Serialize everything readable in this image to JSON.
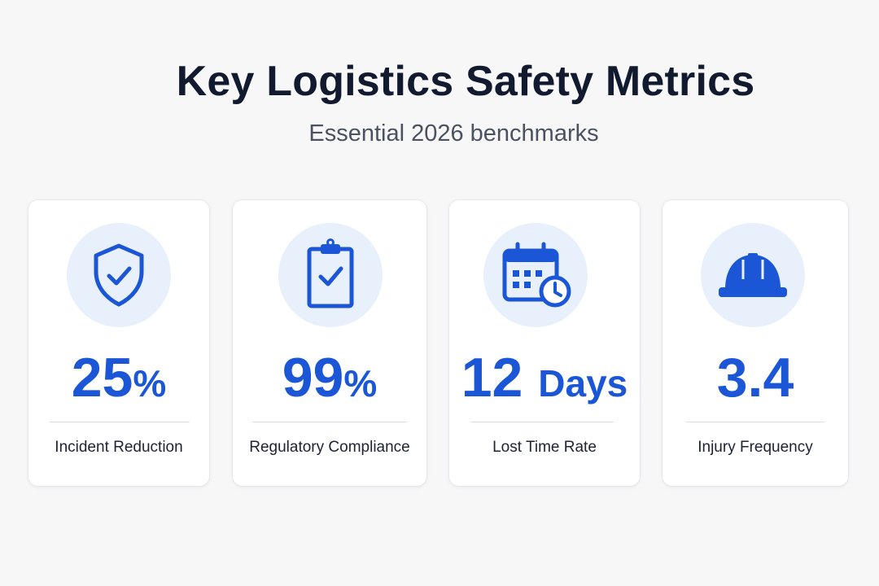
{
  "header": {
    "title": "Key Logistics Safety Metrics",
    "subtitle": "Essential 2026 benchmarks"
  },
  "colors": {
    "accent": "#1a56d6",
    "icon_bg": "#e8f0fc",
    "title": "#111a2e",
    "subtitle": "#4a5262",
    "card_bg": "#ffffff",
    "page_bg": "#f7f7f8"
  },
  "metrics": [
    {
      "icon": "shield-check-icon",
      "value": "25",
      "unit": "%",
      "label": "Incident Reduction"
    },
    {
      "icon": "clipboard-check-icon",
      "value": "99",
      "unit": "%",
      "label": "Regulatory Compliance"
    },
    {
      "icon": "calendar-clock-icon",
      "value": "12",
      "unit": "Days",
      "label": "Lost Time Rate"
    },
    {
      "icon": "hard-hat-icon",
      "value": "3.4",
      "unit": "",
      "label": "Injury Frequency"
    }
  ]
}
